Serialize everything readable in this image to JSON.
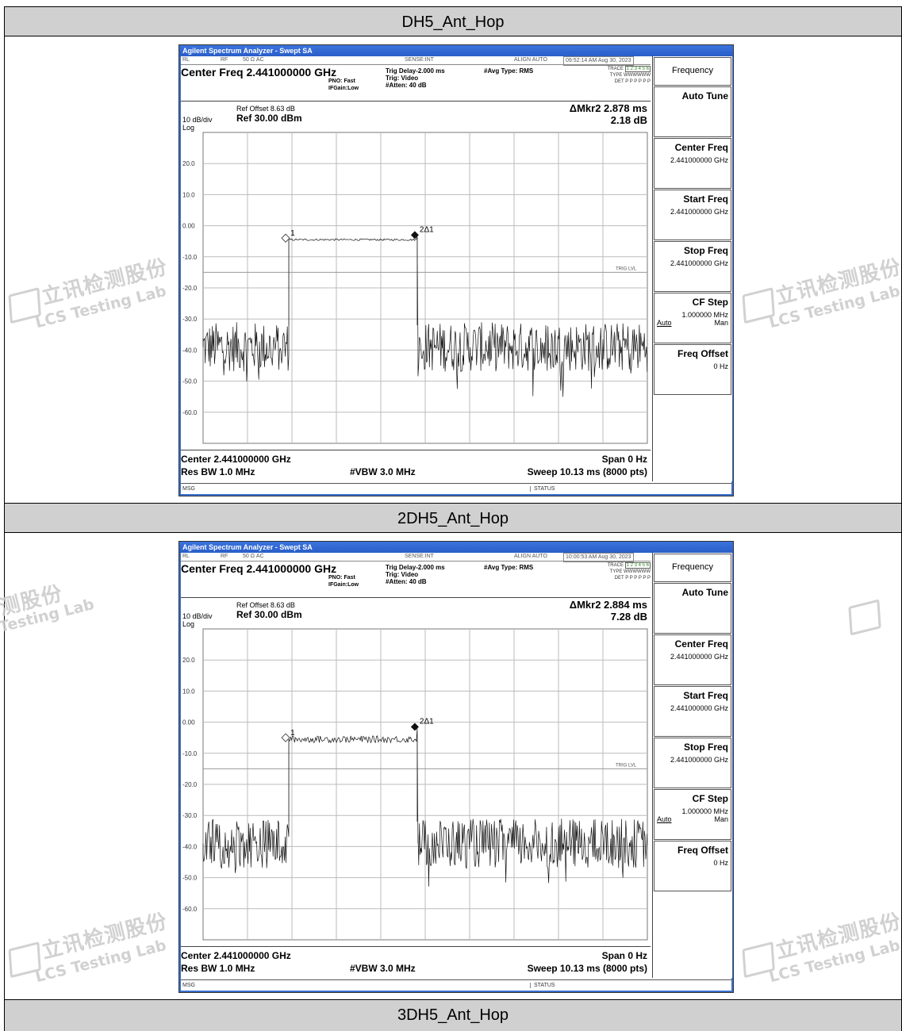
{
  "sections": [
    {
      "header": "DH5_Ant_Hop",
      "analyzer": {
        "window_title": "Agilent Spectrum Analyzer - Swept SA",
        "rl": "RL",
        "rf": "RF",
        "ohm": "50 Ω  AC",
        "sense": "SENSE:INT",
        "align": "ALIGN AUTO",
        "timestamp": "09:52:14 AM Aug 30, 2023",
        "center_freq": "Center Freq 2.441000000 GHz",
        "pno": "PNO: Fast",
        "ifgain": "IFGain:Low",
        "trig_delay": "Trig Delay-2.000 ms",
        "trig": "Trig: Video",
        "atten": "#Atten: 40 dB",
        "avg_type": "#Avg Type: RMS",
        "trace_label": "TRACE",
        "trace_nums": "1 2 3 4 5 6",
        "type_label": "TYPE",
        "type_vals": "WWWWWW",
        "det_label": "DET",
        "det_vals": "P P P P P P",
        "ref_offset": "Ref Offset 8.63 dB",
        "scale": "10 dB/div",
        "ref_level": "Ref 30.00 dBm",
        "log": "Log",
        "marker_delta": "ΔMkr2 2.878 ms",
        "marker_value": "2.18 dB",
        "center_bottom": "Center 2.441000000 GHz",
        "span": "Span 0 Hz",
        "rbw": "Res BW 1.0 MHz",
        "vbw": "#VBW 3.0 MHz",
        "sweep": "Sweep  10.13 ms (8000 pts)",
        "msg": "MSG",
        "status": "STATUS",
        "trig_lvl": "TRIG LVL",
        "mk1": "1",
        "mk2": "2Δ1",
        "y_ticks": [
          "20.0",
          "10.0",
          "0.00",
          "-10.0",
          "-20.0",
          "-30.0",
          "-40.0",
          "-50.0",
          "-60.0"
        ],
        "pulse_level": -4.5,
        "softkeys": [
          {
            "title": "Frequency",
            "value": ""
          },
          {
            "title": "Auto Tune",
            "value": ""
          },
          {
            "title": "Center Freq",
            "value": "2.441000000 GHz"
          },
          {
            "title": "Start Freq",
            "value": "2.441000000 GHz"
          },
          {
            "title": "Stop Freq",
            "value": "2.441000000 GHz"
          },
          {
            "title": "CF Step",
            "value": "1.000000 MHz",
            "auto": "Auto",
            "man": "Man"
          },
          {
            "title": "Freq Offset",
            "value": "0 Hz"
          }
        ]
      }
    },
    {
      "header": "2DH5_Ant_Hop",
      "analyzer": {
        "window_title": "Agilent Spectrum Analyzer - Swept SA",
        "rl": "RL",
        "rf": "RF",
        "ohm": "50 Ω  AC",
        "sense": "SENSE:INT",
        "align": "ALIGN AUTO",
        "timestamp": "10:00:53 AM Aug 30, 2023",
        "center_freq": "Center Freq 2.441000000 GHz",
        "pno": "PNO: Fast",
        "ifgain": "IFGain:Low",
        "trig_delay": "Trig Delay-2.000 ms",
        "trig": "Trig: Video",
        "atten": "#Atten: 40 dB",
        "avg_type": "#Avg Type: RMS",
        "trace_label": "TRACE",
        "trace_nums": "1 2 3 4 5 6",
        "type_label": "TYPE",
        "type_vals": "WWWWWW",
        "det_label": "DET",
        "det_vals": "P P P P P P",
        "ref_offset": "Ref Offset 8.63 dB",
        "scale": "10 dB/div",
        "ref_level": "Ref 30.00 dBm",
        "log": "Log",
        "marker_delta": "ΔMkr2 2.884 ms",
        "marker_value": "7.28 dB",
        "center_bottom": "Center 2.441000000 GHz",
        "span": "Span 0 Hz",
        "rbw": "Res BW 1.0 MHz",
        "vbw": "#VBW 3.0 MHz",
        "sweep": "Sweep  10.13 ms (8000 pts)",
        "msg": "MSG",
        "status": "STATUS",
        "trig_lvl": "TRIG LVL",
        "mk1": "1",
        "mk2": "2Δ1",
        "y_ticks": [
          "20.0",
          "10.0",
          "0.00",
          "-10.0",
          "-20.0",
          "-30.0",
          "-40.0",
          "-50.0",
          "-60.0"
        ],
        "pulse_level": -5.5,
        "softkeys": [
          {
            "title": "Frequency",
            "value": ""
          },
          {
            "title": "Auto Tune",
            "value": ""
          },
          {
            "title": "Center Freq",
            "value": "2.441000000 GHz"
          },
          {
            "title": "Start Freq",
            "value": "2.441000000 GHz"
          },
          {
            "title": "Stop Freq",
            "value": "2.441000000 GHz"
          },
          {
            "title": "CF Step",
            "value": "1.000000 MHz",
            "auto": "Auto",
            "man": "Man"
          },
          {
            "title": "Freq Offset",
            "value": "0 Hz"
          }
        ]
      }
    },
    {
      "header": "3DH5_Ant_Hop"
    }
  ],
  "watermark": {
    "cn": "立讯检测股份",
    "en": "LCS Testing Lab"
  }
}
